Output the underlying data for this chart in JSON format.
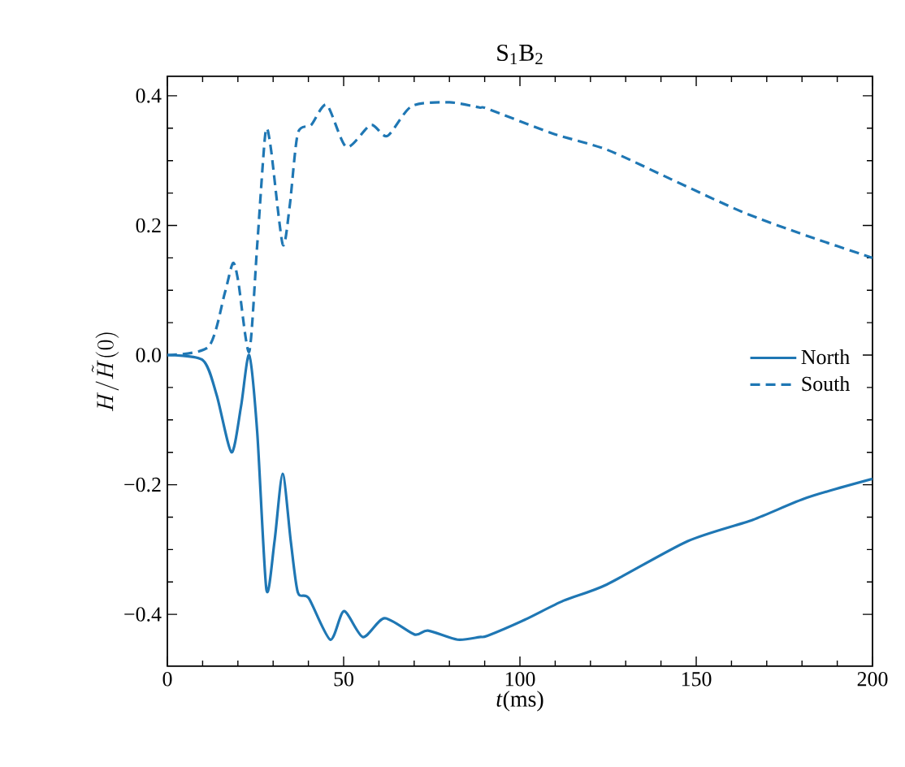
{
  "chart_data": {
    "type": "line",
    "title": "S$_{1}$B$_{2}$",
    "xlabel": "*t*(ms)",
    "ylabel": "H/\\tilde{H}(0)",
    "xlim": [
      0,
      200
    ],
    "ylim": [
      -0.48,
      0.43
    ],
    "xticks": [
      0,
      50,
      100,
      150,
      200
    ],
    "yticks": [
      {
        "value": -0.4,
        "label": "−0.4"
      },
      {
        "value": -0.2,
        "label": "−0.2"
      },
      {
        "value": 0.0,
        "label": "0.0"
      },
      {
        "value": 0.2,
        "label": "0.2"
      },
      {
        "value": 0.4,
        "label": "0.4"
      }
    ],
    "grid": false,
    "legend": "right",
    "marker": "none",
    "series": [
      {
        "name": "North",
        "color": "#1f77b4",
        "line_style": "solid",
        "x": [
          0,
          10.1,
          14,
          18.2,
          20.9,
          23.2,
          25.5,
          28.1,
          30.4,
          32.7,
          35,
          37,
          40.1,
          46.2,
          50.1,
          55.5,
          61.6,
          70.1,
          73.9,
          82.3,
          88.5,
          90.8,
          101.5,
          112.3,
          124.6,
          147.6,
          166.1,
          181.4,
          200
        ],
        "values": [
          0,
          -0.008,
          -0.062,
          -0.15,
          -0.079,
          0,
          -0.12,
          -0.362,
          -0.287,
          -0.183,
          -0.287,
          -0.366,
          -0.375,
          -0.439,
          -0.395,
          -0.435,
          -0.406,
          -0.431,
          -0.425,
          -0.439,
          -0.435,
          -0.433,
          -0.408,
          -0.379,
          -0.354,
          -0.287,
          -0.254,
          -0.22,
          -0.191
        ]
      },
      {
        "name": "South",
        "color": "#1f77b4",
        "line_style": "dashed",
        "x": [
          0,
          11.7,
          16.3,
          18.6,
          20.1,
          23.2,
          25.5,
          27.8,
          29.3,
          32.7,
          34.7,
          37,
          40.8,
          45.2,
          50.8,
          57.7,
          62.4,
          69.3,
          80,
          88.5,
          90.8,
          109.2,
          124.6,
          143,
          163,
          181.4,
          200
        ],
        "values": [
          0,
          0.013,
          0.096,
          0.142,
          0.114,
          0.005,
          0.171,
          0.342,
          0.321,
          0.171,
          0.23,
          0.342,
          0.355,
          0.386,
          0.321,
          0.355,
          0.338,
          0.384,
          0.39,
          0.382,
          0.38,
          0.342,
          0.317,
          0.271,
          0.221,
          0.184,
          0.15
        ]
      }
    ]
  }
}
